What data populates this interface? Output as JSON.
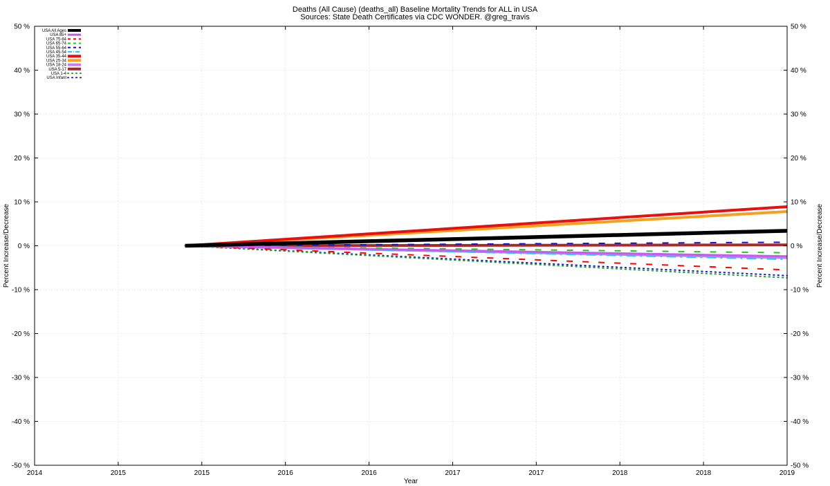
{
  "chart_data": {
    "type": "line",
    "title": "Deaths (All Cause) (deaths_all) Baseline Mortality Trends for ALL in USA",
    "subtitle": "Sources: State Death Certificates via CDC WONDER.  @greg_travis",
    "xlabel": "Year",
    "ylabel": "Percent Increase/Decrease",
    "ylabel_right": "Percent Increase/Decrease",
    "ylim": [
      -50,
      50
    ],
    "xlim": [
      2014,
      2019
    ],
    "x_tick_labels": [
      "2014",
      "2015",
      "2015",
      "2016",
      "2016",
      "2017",
      "2017",
      "2018",
      "2018",
      "2019"
    ],
    "y_tick_labels": [
      "-50 %",
      "-40 %",
      "-30 %",
      "-20 %",
      "-10 %",
      "0 %",
      "10 %",
      "20 %",
      "30 %",
      "40 %",
      "50 %"
    ],
    "grid": true,
    "legend_position": "top-left",
    "x": [
      2015.0,
      2019.0
    ],
    "series": [
      {
        "name": "USA All Ages",
        "color": "#000000",
        "style": "solid",
        "width": 5.5,
        "values": [
          0,
          3.4
        ]
      },
      {
        "name": "USA 85+",
        "color": "#c65bf0",
        "style": "solid",
        "width": 3,
        "values": [
          0,
          -2.4
        ]
      },
      {
        "name": "USA 75-84",
        "color": "#ff0000",
        "style": "dashed",
        "width": 2,
        "values": [
          0,
          -5.5
        ]
      },
      {
        "name": "USA 65-74",
        "color": "#22c622",
        "style": "dashed",
        "width": 2,
        "values": [
          0,
          -1.6
        ]
      },
      {
        "name": "USA 55-64",
        "color": "#1010d0",
        "style": "dashed",
        "width": 2,
        "values": [
          0,
          0.8
        ]
      },
      {
        "name": "USA 45-54",
        "color": "#22ccee",
        "style": "dashdot",
        "width": 2,
        "values": [
          0,
          -3.1
        ]
      },
      {
        "name": "USA 35-44",
        "color": "#e61010",
        "style": "solid",
        "width": 4,
        "values": [
          0,
          8.9
        ]
      },
      {
        "name": "USA 25-34",
        "color": "#f5a01e",
        "style": "solid",
        "width": 4,
        "values": [
          0,
          7.8
        ]
      },
      {
        "name": "USA 18-24",
        "color": "#c080f0",
        "style": "solid",
        "width": 4,
        "values": [
          0,
          -2.7
        ]
      },
      {
        "name": "USA 5-17",
        "color": "#a52a2a",
        "style": "solid",
        "width": 4,
        "values": [
          0,
          0.2
        ]
      },
      {
        "name": "USA 1-4",
        "color": "#22a022",
        "style": "dotted",
        "width": 2,
        "values": [
          0,
          -7.3
        ]
      },
      {
        "name": "USA Infant",
        "color": "#1a1ac8",
        "style": "dotted",
        "width": 2,
        "values": [
          0,
          -6.8
        ]
      }
    ]
  }
}
